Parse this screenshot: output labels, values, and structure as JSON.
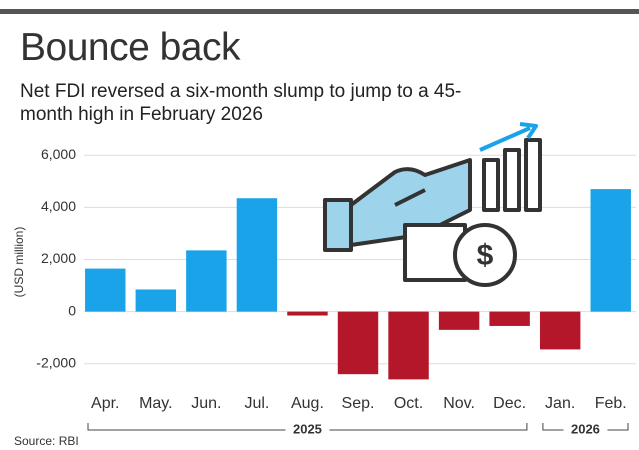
{
  "chart_data": {
    "type": "bar",
    "title": "Bounce back",
    "subtitle": "Net FDI reversed a six-month slump to jump to a 45-month high in February 2026",
    "y_label": "(USD million)",
    "source": "Source: RBI",
    "categories": [
      "Apr.",
      "May.",
      "Jun.",
      "Jul.",
      "Aug.",
      "Sep.",
      "Oct.",
      "Nov.",
      "Dec.",
      "Jan.",
      "Feb."
    ],
    "values": [
      1650,
      850,
      2350,
      4350,
      -150,
      -2400,
      -2600,
      -700,
      -550,
      -1450,
      4700
    ],
    "positive_color": "#1aa3e8",
    "negative_color": "#b5172a",
    "ylim": [
      -2700,
      6200
    ],
    "yticks": [
      {
        "value": -2000,
        "label": "-2,000"
      },
      0,
      {
        "value": 2000,
        "label": "2,000"
      },
      {
        "value": 4000,
        "label": "4,000"
      },
      {
        "value": 6000,
        "label": "6,000"
      }
    ],
    "grid": true,
    "year_groups": [
      {
        "label": "2025",
        "span": 9
      },
      {
        "label": "2026",
        "span": 2
      }
    ]
  }
}
